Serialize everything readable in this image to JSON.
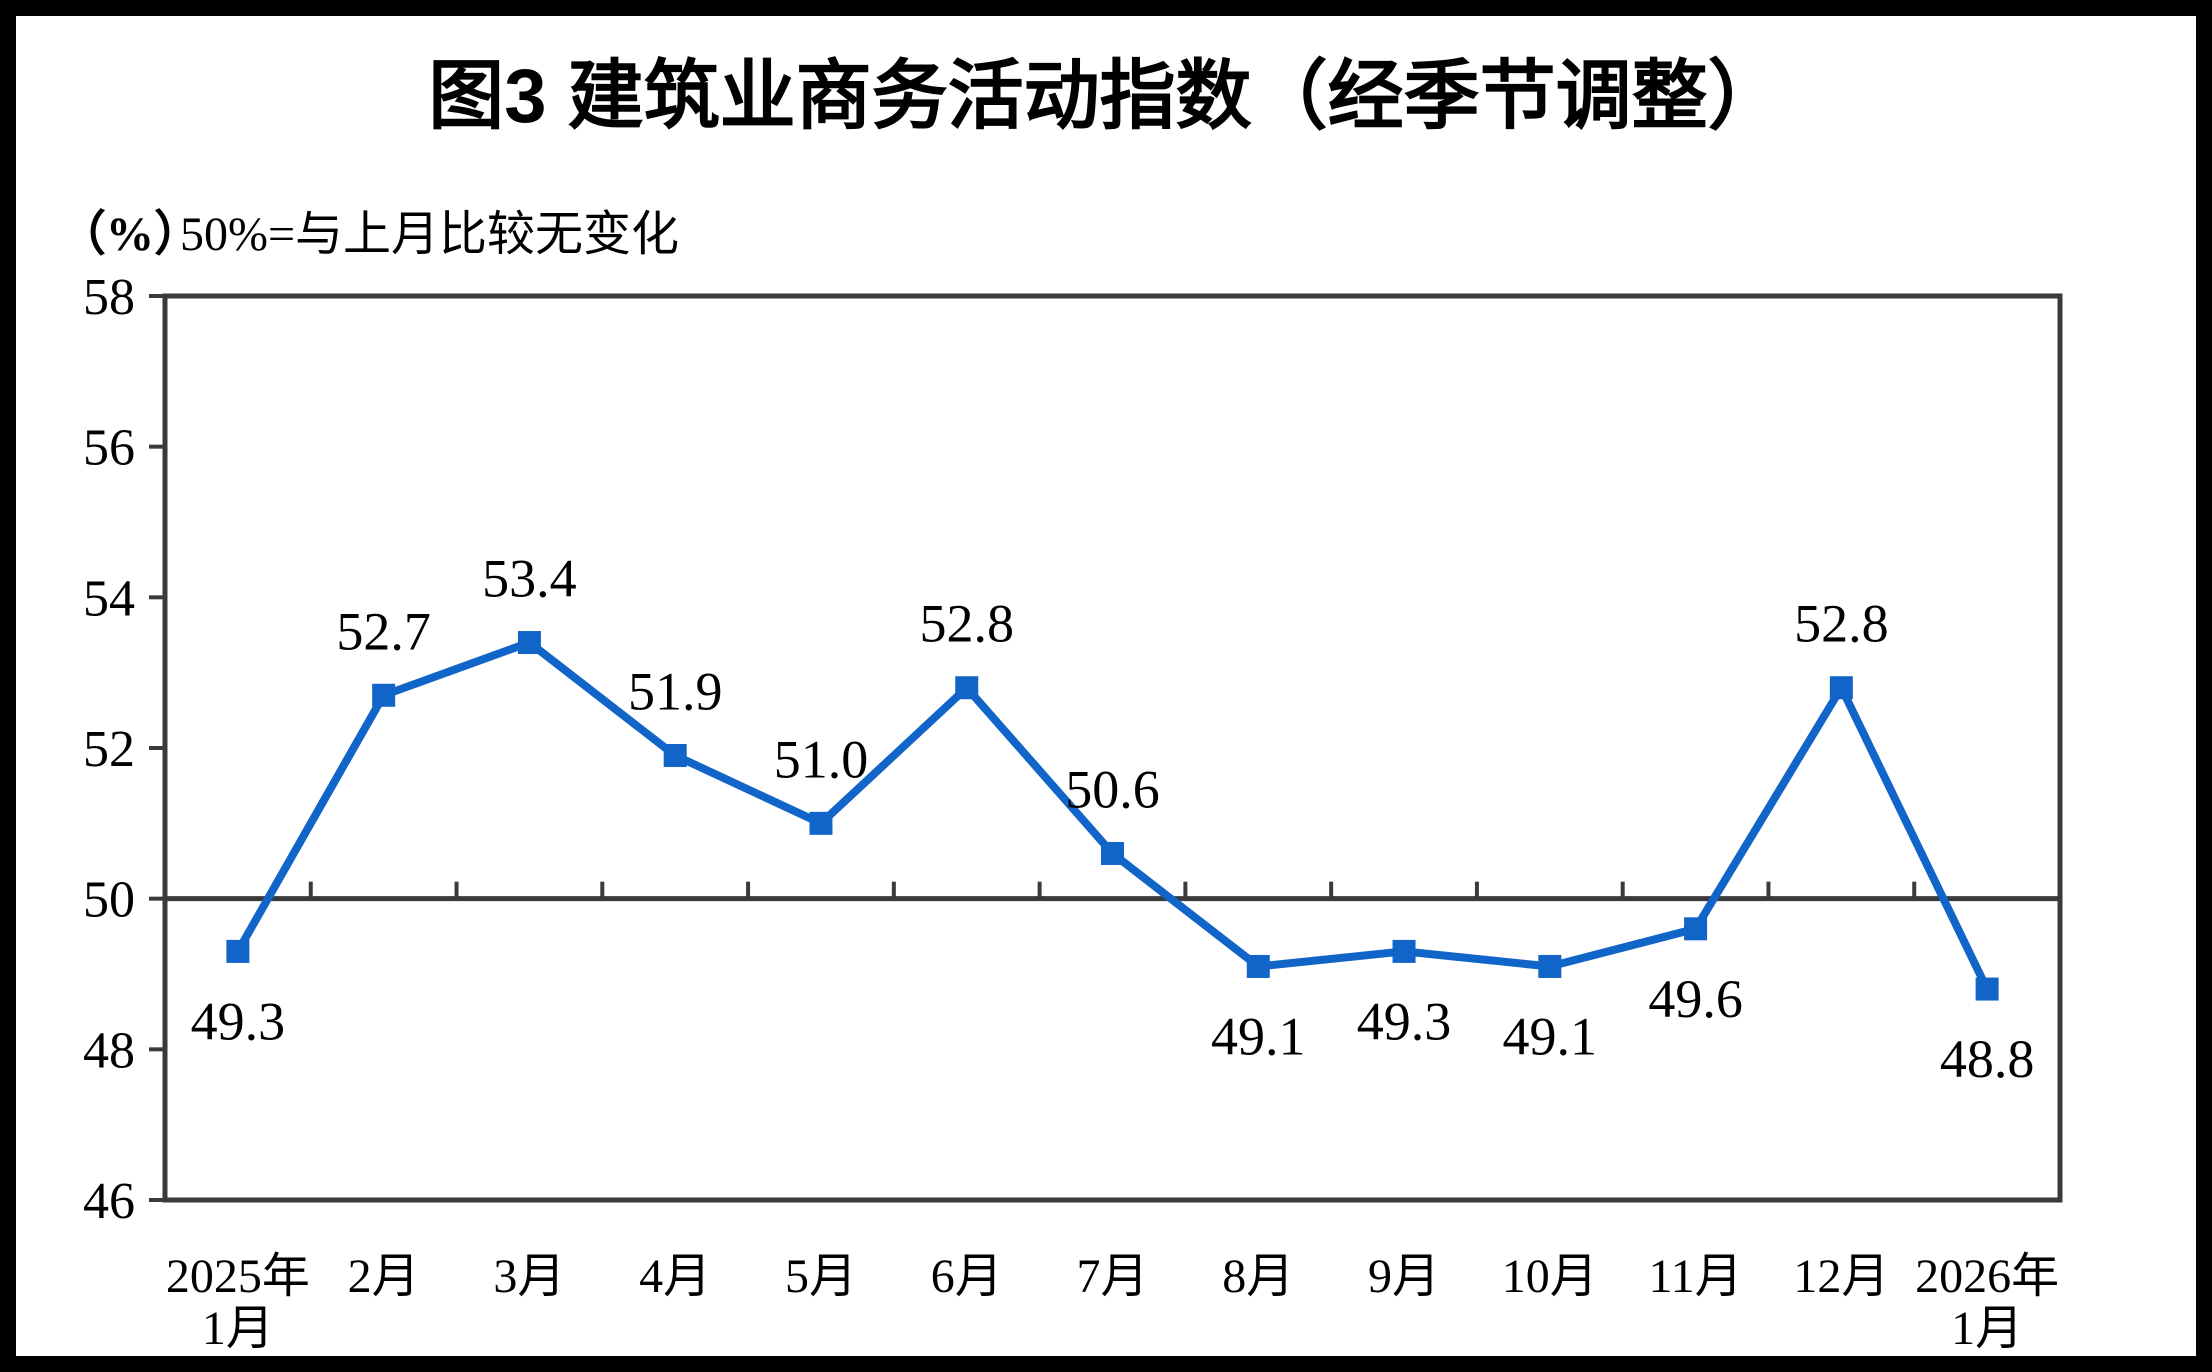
{
  "title": "图3  建筑业商务活动指数（经季节调整）",
  "axis_note": {
    "unit": "（%）",
    "note": "50%=与上月比较无变化"
  },
  "chart_data": {
    "type": "line",
    "categories": [
      "2025年1月",
      "2月",
      "3月",
      "4月",
      "5月",
      "6月",
      "7月",
      "8月",
      "9月",
      "10月",
      "11月",
      "12月",
      "2026年1月"
    ],
    "x_tick_labels": [
      [
        "2025年",
        "1月"
      ],
      [
        "2月"
      ],
      [
        "3月"
      ],
      [
        "4月"
      ],
      [
        "5月"
      ],
      [
        "6月"
      ],
      [
        "7月"
      ],
      [
        "8月"
      ],
      [
        "9月"
      ],
      [
        "10月"
      ],
      [
        "11月"
      ],
      [
        "12月"
      ],
      [
        "2026年",
        "1月"
      ]
    ],
    "values": [
      49.3,
      52.7,
      53.4,
      51.9,
      51.0,
      52.8,
      50.6,
      49.1,
      49.3,
      49.1,
      49.6,
      52.8,
      48.8
    ],
    "data_labels": [
      "49.3",
      "52.7",
      "53.4",
      "51.9",
      "51.0",
      "52.8",
      "50.6",
      "49.1",
      "49.3",
      "49.1",
      "49.6",
      "52.8",
      "48.8"
    ],
    "ylabel": "（%）",
    "ylim": [
      46,
      58
    ],
    "y_ticks": [
      58,
      56,
      54,
      52,
      50,
      48,
      46
    ],
    "reference_line": 50,
    "grid": "off",
    "legend": "none",
    "marker": "square",
    "line_color": "#1164C8",
    "axis_color": "#3A3A3A",
    "text_color": "#000000",
    "background_color": "#FFFFFF",
    "frame_color": "#000000"
  }
}
